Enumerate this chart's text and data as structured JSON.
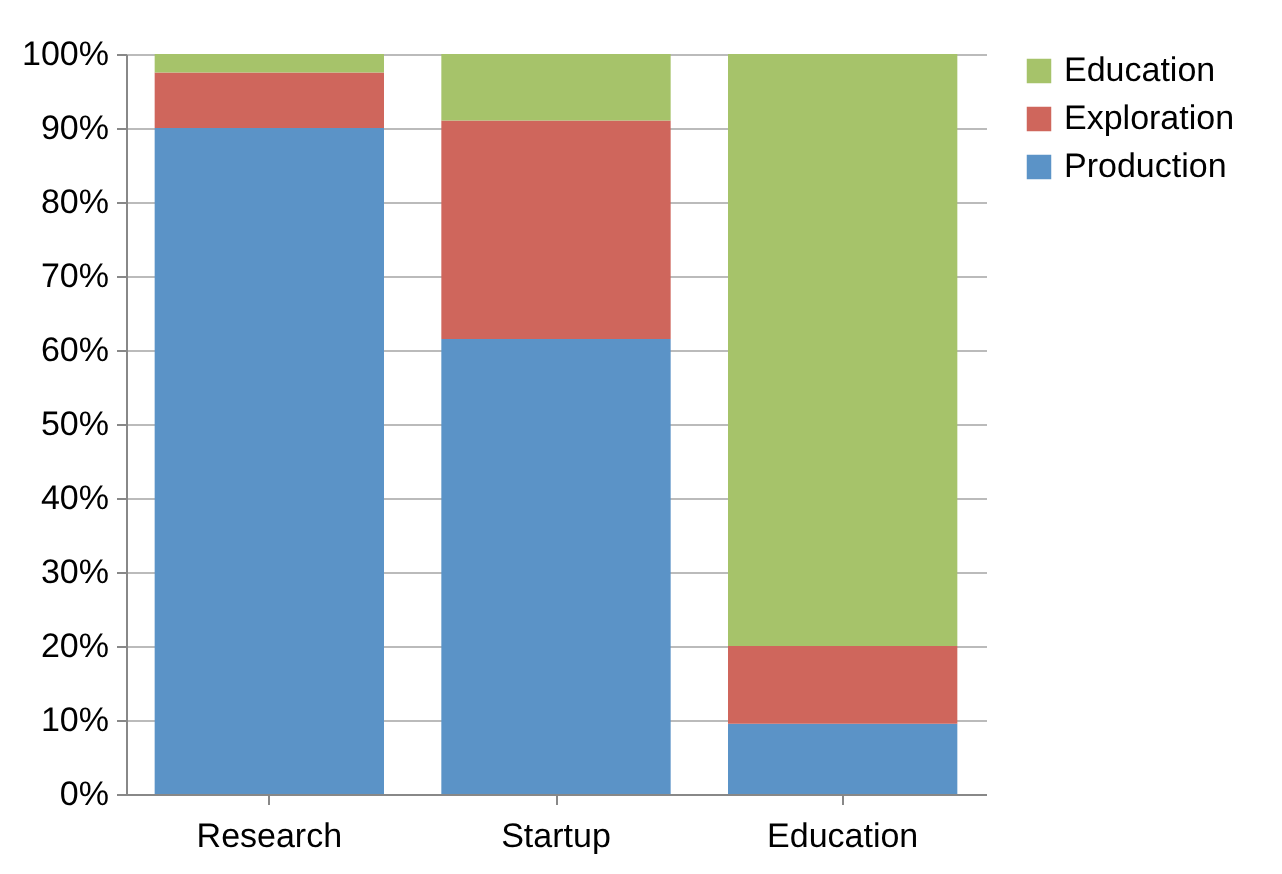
{
  "chart_data": {
    "type": "bar",
    "stacked": true,
    "categories": [
      "Research",
      "Startup",
      "Education"
    ],
    "series": [
      {
        "name": "Production",
        "color": "#5b93c7",
        "values": [
          90,
          61.5,
          9.5
        ]
      },
      {
        "name": "Exploration",
        "color": "#cf665c",
        "values": [
          7.5,
          29.5,
          10.5
        ]
      },
      {
        "name": "Education",
        "color": "#a6c36a",
        "values": [
          2.5,
          9,
          80
        ]
      }
    ],
    "ylim": [
      0,
      100
    ],
    "yticks": [
      {
        "value": 0,
        "label": "0%"
      },
      {
        "value": 10,
        "label": "10%"
      },
      {
        "value": 20,
        "label": "20%"
      },
      {
        "value": 30,
        "label": "30%"
      },
      {
        "value": 40,
        "label": "40%"
      },
      {
        "value": 50,
        "label": "50%"
      },
      {
        "value": 60,
        "label": "60%"
      },
      {
        "value": 70,
        "label": "70%"
      },
      {
        "value": 80,
        "label": "80%"
      },
      {
        "value": 90,
        "label": "90%"
      },
      {
        "value": 100,
        "label": "100%"
      }
    ],
    "grid": "y",
    "legend": "right"
  }
}
